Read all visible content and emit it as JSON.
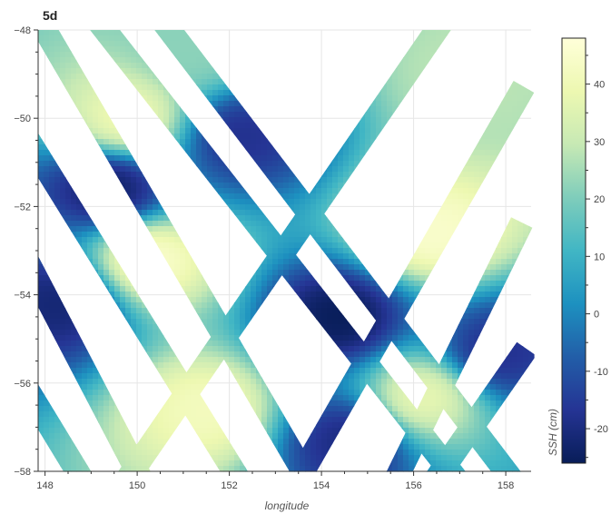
{
  "chart_data": {
    "type": "heatmap",
    "title": "5d",
    "xlabel": "longitude",
    "ylabel": "",
    "xlim": [
      147.85,
      158.55
    ],
    "ylim": [
      -58,
      -48
    ],
    "x_ticks": [
      148,
      150,
      152,
      154,
      156,
      158
    ],
    "y_ticks": [
      -48,
      -50,
      -52,
      -54,
      -56,
      -58
    ],
    "grid": true,
    "colorbar": {
      "label": "SSH (cm)",
      "range": [
        -26,
        48
      ],
      "ticks": [
        40,
        30,
        20,
        10,
        0,
        -10,
        -20
      ],
      "tick_labels": [
        "40",
        "30",
        "20",
        "10",
        "0",
        "-10",
        "-20"
      ],
      "colormap": [
        "#081d58",
        "#253494",
        "#225ea8",
        "#1d91c0",
        "#41b6c4",
        "#7fcdbb",
        "#c7e9b4",
        "#edf8b1",
        "#ffffd9"
      ]
    },
    "swaths": [
      {
        "lon_top": 148.0,
        "lat_top": -48,
        "lon_bottom": 153.6,
        "lat_bottom": -58
      },
      {
        "lon_top": 149.3,
        "lat_top": -48,
        "lon_bottom": 156.8,
        "lat_bottom": -58
      },
      {
        "lon_top": 150.7,
        "lat_top": -48,
        "lon_bottom": 158.0,
        "lat_bottom": -58
      },
      {
        "lon_top": 148.0,
        "lat_top": -51.1,
        "lon_bottom": 152.1,
        "lat_bottom": -58
      },
      {
        "lon_top": 148.0,
        "lat_top": -54.0,
        "lon_bottom": 150.0,
        "lat_bottom": -58
      },
      {
        "lon_top": 148.0,
        "lat_top": -56.8,
        "lon_bottom": 148.7,
        "lat_bottom": -58
      },
      {
        "lon_top": 156.5,
        "lat_top": -48,
        "lon_bottom": 149.9,
        "lat_bottom": -58
      },
      {
        "lon_top": 158.0,
        "lat_top": -50.0,
        "lon_bottom": 153.6,
        "lat_bottom": -58
      },
      {
        "lon_top": 158.0,
        "lat_top": -53.1,
        "lon_bottom": 155.7,
        "lat_bottom": -58
      },
      {
        "lon_top": 158.0,
        "lat_top": -55.9,
        "lon_bottom": 156.6,
        "lat_bottom": -58
      }
    ],
    "ssh_field": [
      {
        "lon": 149.4,
        "lat": -51.6,
        "ssh_cm": -24
      },
      {
        "lon": 154.4,
        "lat": -54.5,
        "ssh_cm": -26
      },
      {
        "lon": 148.3,
        "lat": -54.2,
        "ssh_cm": -22
      },
      {
        "lon": 152.3,
        "lat": -50.4,
        "ssh_cm": -18
      },
      {
        "lon": 154.6,
        "lat": -57.3,
        "ssh_cm": -20
      },
      {
        "lon": 157.8,
        "lat": -55.3,
        "ssh_cm": -18
      },
      {
        "lon": 150.3,
        "lat": -53.2,
        "ssh_cm": 45
      },
      {
        "lon": 149.8,
        "lat": -50.0,
        "ssh_cm": 40
      },
      {
        "lon": 151.5,
        "lat": -56.6,
        "ssh_cm": 42
      },
      {
        "lon": 156.4,
        "lat": -52.6,
        "ssh_cm": 45
      },
      {
        "lon": 156.2,
        "lat": -56.3,
        "ssh_cm": 38
      },
      {
        "lon": 151.3,
        "lat": -48.4,
        "ssh_cm": 22
      },
      {
        "lon": 157.2,
        "lat": -49.0,
        "ssh_cm": 28
      }
    ]
  }
}
